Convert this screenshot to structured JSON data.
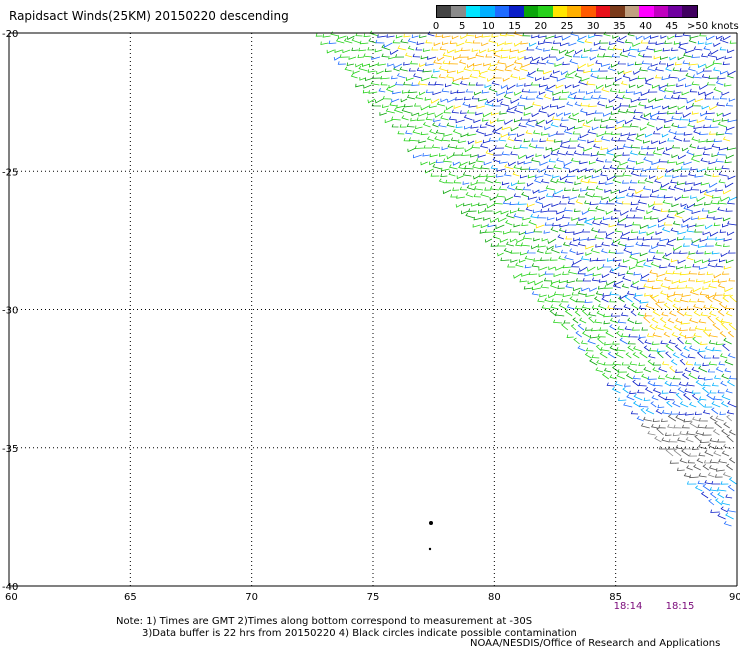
{
  "title": "Rapidsact Winds(25KM) 20150220 descending",
  "legend": {
    "colors": [
      "#444444",
      "#8a8a8a",
      "#00e5ff",
      "#00b0ff",
      "#1e6bff",
      "#0a1ec8",
      "#0aa50a",
      "#26d11a",
      "#ffe600",
      "#ffb000",
      "#ff5a00",
      "#e8101a",
      "#7a3a1a",
      "#c0a080",
      "#ff00ff",
      "#c000c0",
      "#7000a0",
      "#400060"
    ],
    "labels": [
      "0",
      "5",
      "10",
      "15",
      "20",
      "25",
      "30",
      "35",
      "40",
      "45",
      ">50 knots"
    ]
  },
  "axes": {
    "x_ticks": [
      "60",
      "65",
      "70",
      "75",
      "80",
      "85",
      "90"
    ],
    "y_ticks": [
      "-20",
      "-25",
      "-30",
      "-35",
      "-40"
    ]
  },
  "times": [
    "18:14",
    "18:15"
  ],
  "notes": {
    "line1": "Note: 1) Times are GMT 2)Times along bottom correspond to measurement at -30S",
    "line2": "3)Data buffer is 22 hrs from 20150220 4) Black circles indicate possible contamination"
  },
  "credit": "NOAA/NESDIS/Office of Research and Applications"
}
